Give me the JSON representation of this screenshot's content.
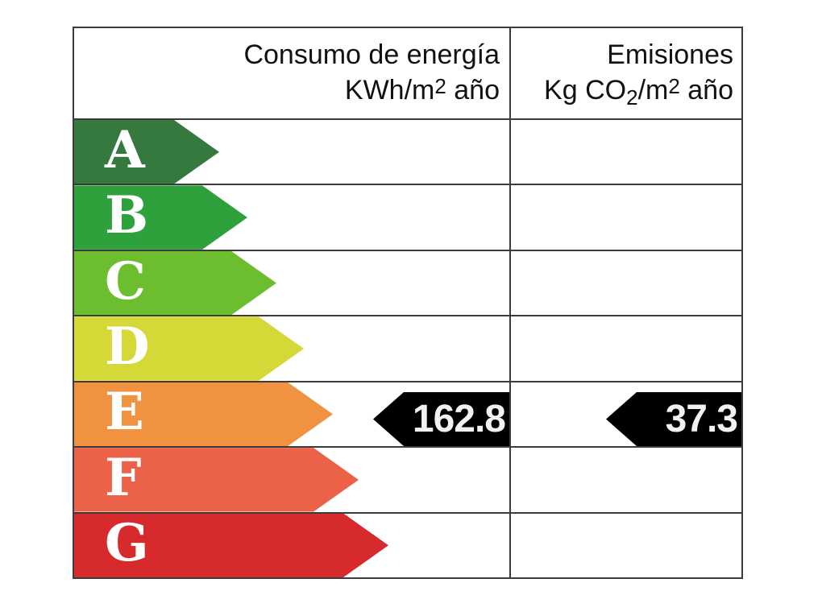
{
  "table": {
    "header": {
      "consumo": {
        "line1": "Consumo de energía",
        "line2": [
          "KWh/m",
          "2",
          " año"
        ]
      },
      "emisiones": {
        "line1": "Emisiones",
        "line2": [
          "Kg CO",
          "2",
          "/m",
          "2",
          " año"
        ]
      }
    },
    "ratings": [
      {
        "letter": "A",
        "color": "#35793F",
        "arrow_width": 180
      },
      {
        "letter": "B",
        "color": "#2FA13C",
        "arrow_width": 215
      },
      {
        "letter": "C",
        "color": "#6CBE2E",
        "arrow_width": 251
      },
      {
        "letter": "D",
        "color": "#D5D938",
        "arrow_width": 285
      },
      {
        "letter": "E",
        "color": "#F0923F",
        "arrow_width": 321
      },
      {
        "letter": "F",
        "color": "#EB6248",
        "arrow_width": 353
      },
      {
        "letter": "G",
        "color": "#D62A2D",
        "arrow_width": 390
      }
    ],
    "values": {
      "consumo": {
        "value": "162.8",
        "row": "E"
      },
      "emisiones": {
        "value": "37.3",
        "row": "E"
      }
    }
  },
  "colors": {
    "border": "#3B3B3B",
    "value_arrow_bg": "#000000",
    "value_text": "#F2F2F2",
    "letter_text": "#FFFFFF",
    "header_text": "#111111",
    "background": "#FFFFFF"
  },
  "chart_data": {
    "type": "table",
    "title": "Etiqueta de eficiencia energética",
    "columns": [
      "Consumo de energía KWh/m2 año",
      "Emisiones Kg CO2/m2 año"
    ],
    "rating_scale": [
      "A",
      "B",
      "C",
      "D",
      "E",
      "F",
      "G"
    ],
    "assigned_rating": "E",
    "values": {
      "consumo_energia_kwh_m2_ano": 162.8,
      "emisiones_kg_co2_m2_ano": 37.3
    },
    "layout_hints": {
      "rating_colors": [
        "#35793F",
        "#2FA13C",
        "#6CBE2E",
        "#D5D938",
        "#F0923F",
        "#EB6248",
        "#D62A2D"
      ],
      "value_markers": "black left-pointing arrows aligned to rating E row",
      "grid": "on"
    }
  }
}
